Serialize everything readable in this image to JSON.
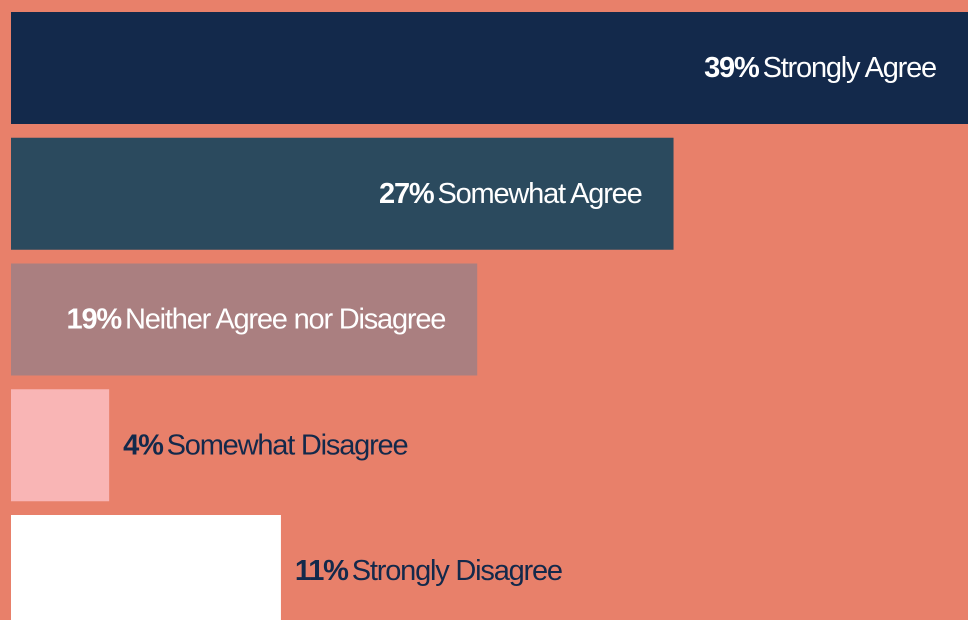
{
  "chart_data": {
    "type": "bar",
    "orientation": "horizontal",
    "categories": [
      "Strongly Agree",
      "Somewhat Agree",
      "Neither Agree nor Disagree",
      "Somewhat Disagree",
      "Strongly Disagree"
    ],
    "values": [
      39,
      27,
      19,
      4,
      11
    ],
    "value_labels": [
      "39%",
      "27%",
      "19%",
      "4%",
      "11%"
    ],
    "colors": [
      "#13294b",
      "#2b4a5e",
      "#aa7f80",
      "#f9b5b5",
      "#ffffff"
    ],
    "background": "#e8806a"
  }
}
